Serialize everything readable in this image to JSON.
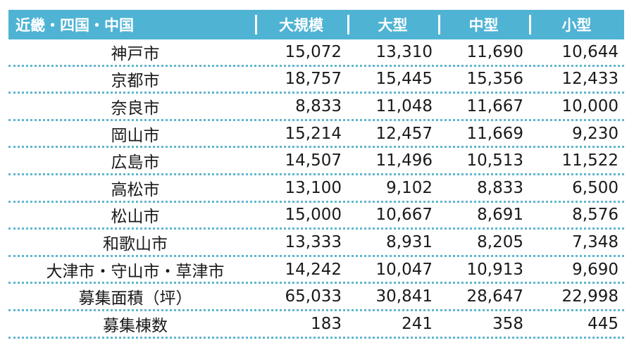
{
  "header": {
    "region": "近畿・四国・中国",
    "columns": [
      "大規模",
      "大型",
      "中型",
      "小型"
    ]
  },
  "rows": [
    {
      "label": "神戸市",
      "values": [
        "15,072",
        "13,310",
        "11,690",
        "10,644"
      ]
    },
    {
      "label": "京都市",
      "values": [
        "18,757",
        "15,445",
        "15,356",
        "12,433"
      ]
    },
    {
      "label": "奈良市",
      "values": [
        "8,833",
        "11,048",
        "11,667",
        "10,000"
      ]
    },
    {
      "label": "岡山市",
      "values": [
        "15,214",
        "12,457",
        "11,669",
        "9,230"
      ]
    },
    {
      "label": "広島市",
      "values": [
        "14,507",
        "11,496",
        "10,513",
        "11,522"
      ]
    },
    {
      "label": "高松市",
      "values": [
        "13,100",
        "9,102",
        "8,833",
        "6,500"
      ]
    },
    {
      "label": "松山市",
      "values": [
        "15,000",
        "10,667",
        "8,691",
        "8,576"
      ]
    },
    {
      "label": "和歌山市",
      "values": [
        "13,333",
        "8,931",
        "8,205",
        "7,348"
      ]
    },
    {
      "label": "大津市・守山市・草津市",
      "values": [
        "14,242",
        "10,047",
        "10,913",
        "9,690"
      ]
    },
    {
      "label": "募集面積（坪）",
      "values": [
        "65,033",
        "30,841",
        "28,647",
        "22,998"
      ]
    },
    {
      "label": "募集棟数",
      "values": [
        "183",
        "241",
        "358",
        "445"
      ]
    }
  ],
  "colors": {
    "header_bg": "#4fb3d4",
    "row_separator": "#5fb6cf"
  }
}
